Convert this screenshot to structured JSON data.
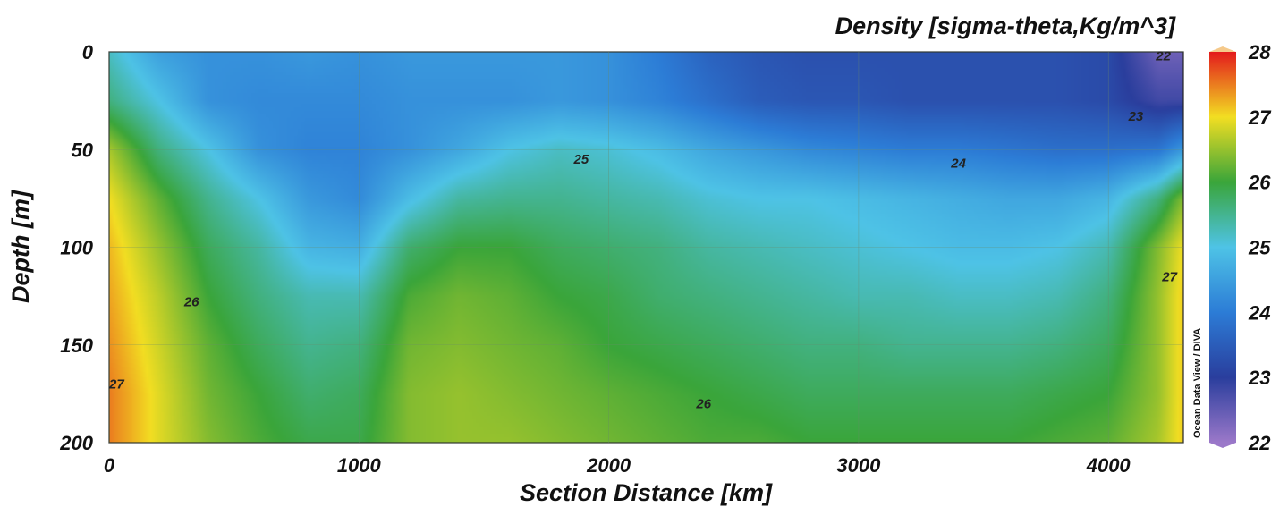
{
  "chart_data": {
    "type": "heatmap",
    "title": "Density [sigma-theta,Kg/m^3]",
    "xlabel": "Section Distance [km]",
    "ylabel": "Depth [m]",
    "xlim": [
      0,
      4300
    ],
    "ylim": [
      200,
      0
    ],
    "x_ticks": [
      "0",
      "1000",
      "2000",
      "3000",
      "4000"
    ],
    "x_tick_values": [
      0,
      1000,
      2000,
      3000,
      4000
    ],
    "y_ticks": [
      "0",
      "50",
      "100",
      "150",
      "200"
    ],
    "y_tick_values": [
      0,
      50,
      100,
      150,
      200
    ],
    "colorbar": {
      "min": 22,
      "max": 28,
      "ticks": [
        "22",
        "23",
        "24",
        "25",
        "26",
        "27",
        "28"
      ],
      "tick_values": [
        22,
        23,
        24,
        25,
        26,
        27,
        28
      ],
      "colors": [
        "#9b78c9",
        "#2a3e9d",
        "#2c7cd6",
        "#4ec3e6",
        "#3aa53a",
        "#f2de22",
        "#e31a1c",
        "#f5c98a"
      ]
    },
    "grid": true,
    "watermark": "Ocean Data View / DIVA",
    "contour_labels": [
      {
        "text": "22",
        "x": 4220,
        "depth": 2
      },
      {
        "text": "23",
        "x": 4110,
        "depth": 33
      },
      {
        "text": "24",
        "x": 3400,
        "depth": 57
      },
      {
        "text": "25",
        "x": 1890,
        "depth": 55
      },
      {
        "text": "26",
        "x": 330,
        "depth": 128
      },
      {
        "text": "26",
        "x": 2380,
        "depth": 180
      },
      {
        "text": "27",
        "x": 30,
        "depth": 170
      },
      {
        "text": "27",
        "x": 4245,
        "depth": 115
      }
    ],
    "density_field": {
      "depths": [
        0,
        25,
        50,
        75,
        100,
        125,
        150,
        175,
        200
      ],
      "distances": [
        0,
        200,
        400,
        600,
        800,
        1000,
        1200,
        1400,
        1600,
        1800,
        2000,
        2200,
        2400,
        2600,
        2800,
        3000,
        3200,
        3400,
        3600,
        3800,
        4000,
        4200,
        4300
      ],
      "values": [
        [
          25.2,
          24.5,
          24.3,
          24.3,
          24.4,
          24.3,
          24.4,
          24.4,
          24.4,
          24.4,
          24.3,
          24.0,
          23.6,
          23.4,
          23.3,
          23.3,
          23.3,
          23.3,
          23.3,
          23.3,
          23.2,
          22.4,
          22.4
        ],
        [
          25.6,
          25.0,
          24.3,
          24.2,
          24.2,
          24.2,
          24.3,
          24.3,
          24.3,
          24.4,
          24.3,
          24.1,
          23.8,
          23.5,
          23.4,
          23.4,
          23.3,
          23.3,
          23.3,
          23.3,
          23.2,
          22.8,
          22.8
        ],
        [
          26.6,
          25.6,
          25.0,
          24.3,
          24.1,
          24.1,
          24.3,
          24.6,
          25.0,
          25.2,
          25.1,
          24.9,
          24.6,
          24.4,
          24.2,
          24.1,
          24.0,
          24.0,
          23.9,
          23.8,
          23.8,
          23.9,
          24.4
        ],
        [
          27.0,
          26.2,
          25.5,
          25.0,
          24.4,
          24.2,
          24.9,
          25.4,
          25.5,
          25.5,
          25.4,
          25.3,
          25.1,
          25.0,
          25.0,
          24.9,
          24.8,
          24.7,
          24.6,
          24.6,
          24.8,
          25.6,
          26.4
        ],
        [
          27.2,
          26.5,
          25.8,
          25.4,
          24.8,
          24.7,
          25.7,
          26.0,
          26.0,
          25.8,
          25.7,
          25.6,
          25.4,
          25.3,
          25.2,
          25.1,
          25.0,
          24.9,
          24.9,
          25.0,
          25.3,
          26.4,
          27.0
        ],
        [
          27.3,
          26.7,
          26.0,
          25.6,
          25.3,
          25.3,
          26.1,
          26.3,
          26.2,
          26.0,
          25.9,
          25.7,
          25.6,
          25.5,
          25.4,
          25.3,
          25.3,
          25.2,
          25.2,
          25.3,
          25.6,
          26.5,
          27.1
        ],
        [
          27.4,
          26.8,
          26.2,
          25.8,
          25.5,
          25.6,
          26.3,
          26.4,
          26.3,
          26.2,
          26.0,
          25.9,
          25.8,
          25.7,
          25.6,
          25.6,
          25.5,
          25.5,
          25.5,
          25.6,
          25.8,
          26.5,
          27.1
        ],
        [
          27.5,
          26.9,
          26.3,
          26.0,
          25.7,
          25.8,
          26.4,
          26.5,
          26.4,
          26.3,
          26.2,
          26.1,
          26.0,
          25.9,
          25.8,
          25.8,
          25.8,
          25.8,
          25.8,
          25.9,
          26.0,
          26.5,
          27.1
        ],
        [
          27.5,
          26.9,
          26.4,
          26.1,
          25.9,
          25.9,
          26.4,
          26.5,
          26.5,
          26.4,
          26.3,
          26.2,
          26.1,
          26.1,
          26.0,
          26.0,
          26.0,
          26.0,
          26.0,
          26.1,
          26.2,
          26.6,
          27.1
        ]
      ]
    }
  }
}
